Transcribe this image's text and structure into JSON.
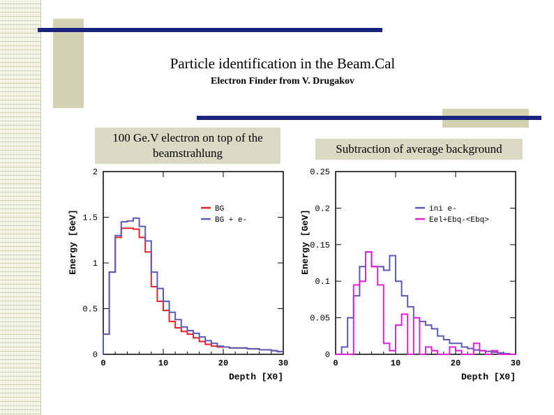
{
  "slide": {
    "title": "Particle identification in the Beam.Cal",
    "subtitle": "Electron Finder from V. Drugakov",
    "left_caption": "100 Ge.V electron on top of the beamstrahlung",
    "right_caption": "Subtraction of average background"
  },
  "chart_data": [
    {
      "type": "line",
      "step": true,
      "xlabel": "Depth [X0]",
      "ylabel": "Energy [GeV]",
      "xlim": [
        0,
        30
      ],
      "ylim": [
        0,
        2
      ],
      "xticks": [
        "0",
        "10",
        "20",
        "30"
      ],
      "yticks": [
        "0",
        "0.5",
        "1",
        "1.5",
        "2"
      ],
      "legend_position": "top-right",
      "bin_width": 1,
      "series": [
        {
          "name": "BG",
          "color": "#e8202a",
          "values": [
            0.22,
            0.9,
            1.28,
            1.38,
            1.38,
            1.37,
            1.28,
            1.12,
            0.74,
            0.58,
            0.48,
            0.36,
            0.29,
            0.25,
            0.22,
            0.18,
            0.14,
            0.11,
            0.09,
            0.08,
            0.08,
            0.07,
            0.07,
            0.07,
            0.06,
            0.06,
            0.05,
            0.05,
            0.04,
            0.03
          ]
        },
        {
          "name": "BG + e-",
          "color": "#5a5ab4",
          "values": [
            0.22,
            0.9,
            1.3,
            1.45,
            1.46,
            1.49,
            1.4,
            1.24,
            0.9,
            0.72,
            0.58,
            0.46,
            0.38,
            0.3,
            0.26,
            0.23,
            0.19,
            0.15,
            0.12,
            0.09,
            0.08,
            0.07,
            0.07,
            0.07,
            0.06,
            0.06,
            0.05,
            0.05,
            0.04,
            0.03
          ]
        }
      ]
    },
    {
      "type": "line",
      "step": true,
      "xlabel": "Depth [X0]",
      "ylabel": "Energy [GeV]",
      "xlim": [
        0,
        30
      ],
      "ylim": [
        0,
        0.25
      ],
      "xticks": [
        "0",
        "10",
        "20",
        "30"
      ],
      "yticks": [
        "0",
        "0.05",
        "0.1",
        "0.15",
        "0.2",
        "0.25"
      ],
      "legend_position": "top-right",
      "bin_width": 1,
      "series": [
        {
          "name": "ini e-",
          "color": "#5a5ab4",
          "values": [
            0.0,
            0.01,
            0.05,
            0.08,
            0.12,
            0.14,
            0.12,
            0.12,
            0.115,
            0.135,
            0.1,
            0.08,
            0.065,
            0.05,
            0.045,
            0.04,
            0.035,
            0.025,
            0.02,
            0.015,
            0.015,
            0.01,
            0.008,
            0.006,
            0.005,
            0.004,
            0.003,
            0.002,
            0.001,
            0.0
          ]
        },
        {
          "name": "Eel+Ebq-<Ebq>",
          "color": "#e020d0",
          "values": [
            0.0,
            0.0,
            0.0,
            0.095,
            0.1,
            0.14,
            0.12,
            0.095,
            0.015,
            0.005,
            0.04,
            0.055,
            0.0,
            0.05,
            0.0,
            0.01,
            0.005,
            0.0,
            0.0,
            0.01,
            0.005,
            0.0,
            0.0,
            0.015,
            0.005,
            0.0,
            0.005,
            0.0,
            0.0,
            0.0
          ]
        }
      ]
    }
  ]
}
